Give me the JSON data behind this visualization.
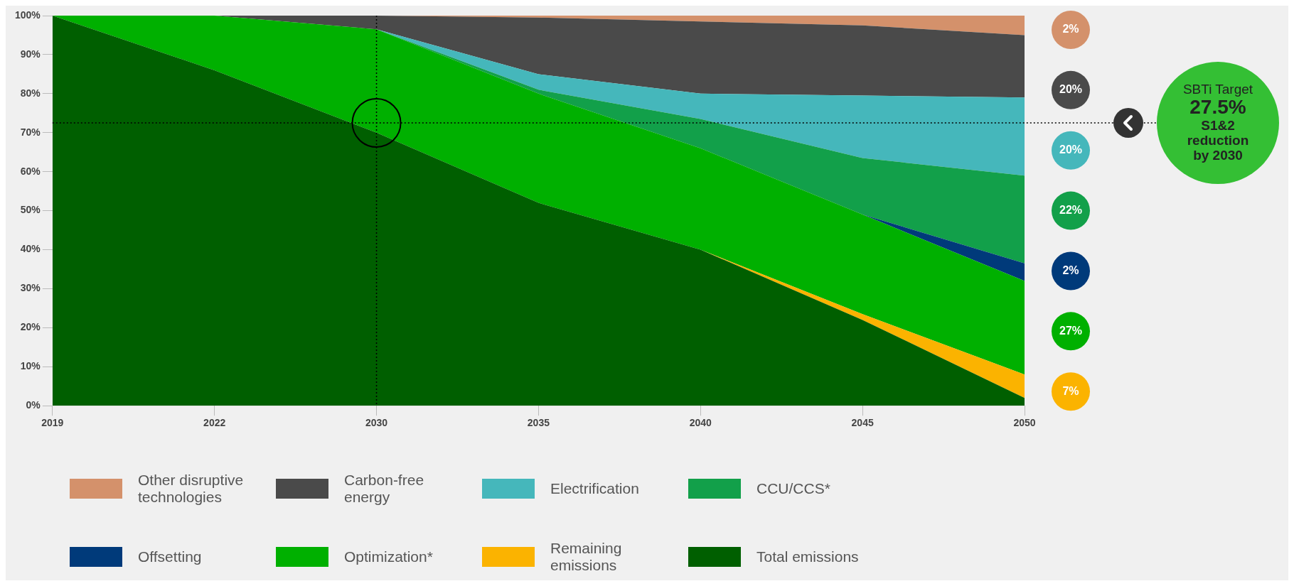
{
  "chart_data": {
    "type": "area",
    "stacked": true,
    "categories": [
      "2019",
      "2022",
      "2030",
      "2035",
      "2040",
      "2045",
      "2050"
    ],
    "series": [
      {
        "name": "Total emissions",
        "color": "#005f00",
        "values": [
          100,
          86,
          70,
          52,
          40,
          22,
          2
        ]
      },
      {
        "name": "Remaining emissions",
        "color": "#fbb300",
        "values": [
          0,
          0,
          0,
          0,
          0,
          1.5,
          6
        ]
      },
      {
        "name": "Optimization*",
        "color": "#00b000",
        "values": [
          0,
          14,
          26.5,
          28,
          26,
          25.5,
          24
        ]
      },
      {
        "name": "Offsetting",
        "color": "#003a7a",
        "values": [
          0,
          0,
          0,
          0,
          0,
          0,
          4.5
        ]
      },
      {
        "name": "CCU/CCS*",
        "color": "#12a04a",
        "values": [
          0,
          0,
          0,
          1,
          7.5,
          14.5,
          22.5
        ]
      },
      {
        "name": "Electrification",
        "color": "#45b7bb",
        "values": [
          0,
          0,
          0,
          4,
          6.5,
          16,
          20
        ]
      },
      {
        "name": "Carbon-free energy",
        "color": "#4a4a4a",
        "values": [
          0,
          0,
          3.5,
          14.5,
          18.5,
          18,
          16
        ]
      },
      {
        "name": "Other disruptive technologies",
        "color": "#d4916b",
        "values": [
          0,
          0,
          0,
          0.5,
          1.5,
          2.5,
          5
        ]
      }
    ],
    "ylim": [
      0,
      100
    ],
    "yticks": [
      {
        "value": 0,
        "label": "0%"
      },
      {
        "value": 10,
        "label": "10%"
      },
      {
        "value": 20,
        "label": "20%"
      },
      {
        "value": 30,
        "label": "30%"
      },
      {
        "value": 40,
        "label": "40%"
      },
      {
        "value": 50,
        "label": "50%"
      },
      {
        "value": 60,
        "label": "60%"
      },
      {
        "value": 70,
        "label": "70%"
      },
      {
        "value": 80,
        "label": "80%"
      },
      {
        "value": 90,
        "label": "90%"
      },
      {
        "value": 100,
        "label": "100%"
      }
    ],
    "grid": false,
    "legend": "bottom",
    "ref_lines": [
      {
        "axis": "y",
        "value": 72.5,
        "label": "SBTi Target\n27.5%\nS1&2\nreduction\nby 2030",
        "color": "#000000",
        "line_style": "dotted"
      },
      {
        "axis": "x",
        "value": "2030",
        "label": null,
        "color": "#000000",
        "line_style": "dotted"
      }
    ],
    "annotations": [
      "2%",
      "20%",
      "20%",
      "22%",
      "2%",
      "27%",
      "7%"
    ]
  }
}
